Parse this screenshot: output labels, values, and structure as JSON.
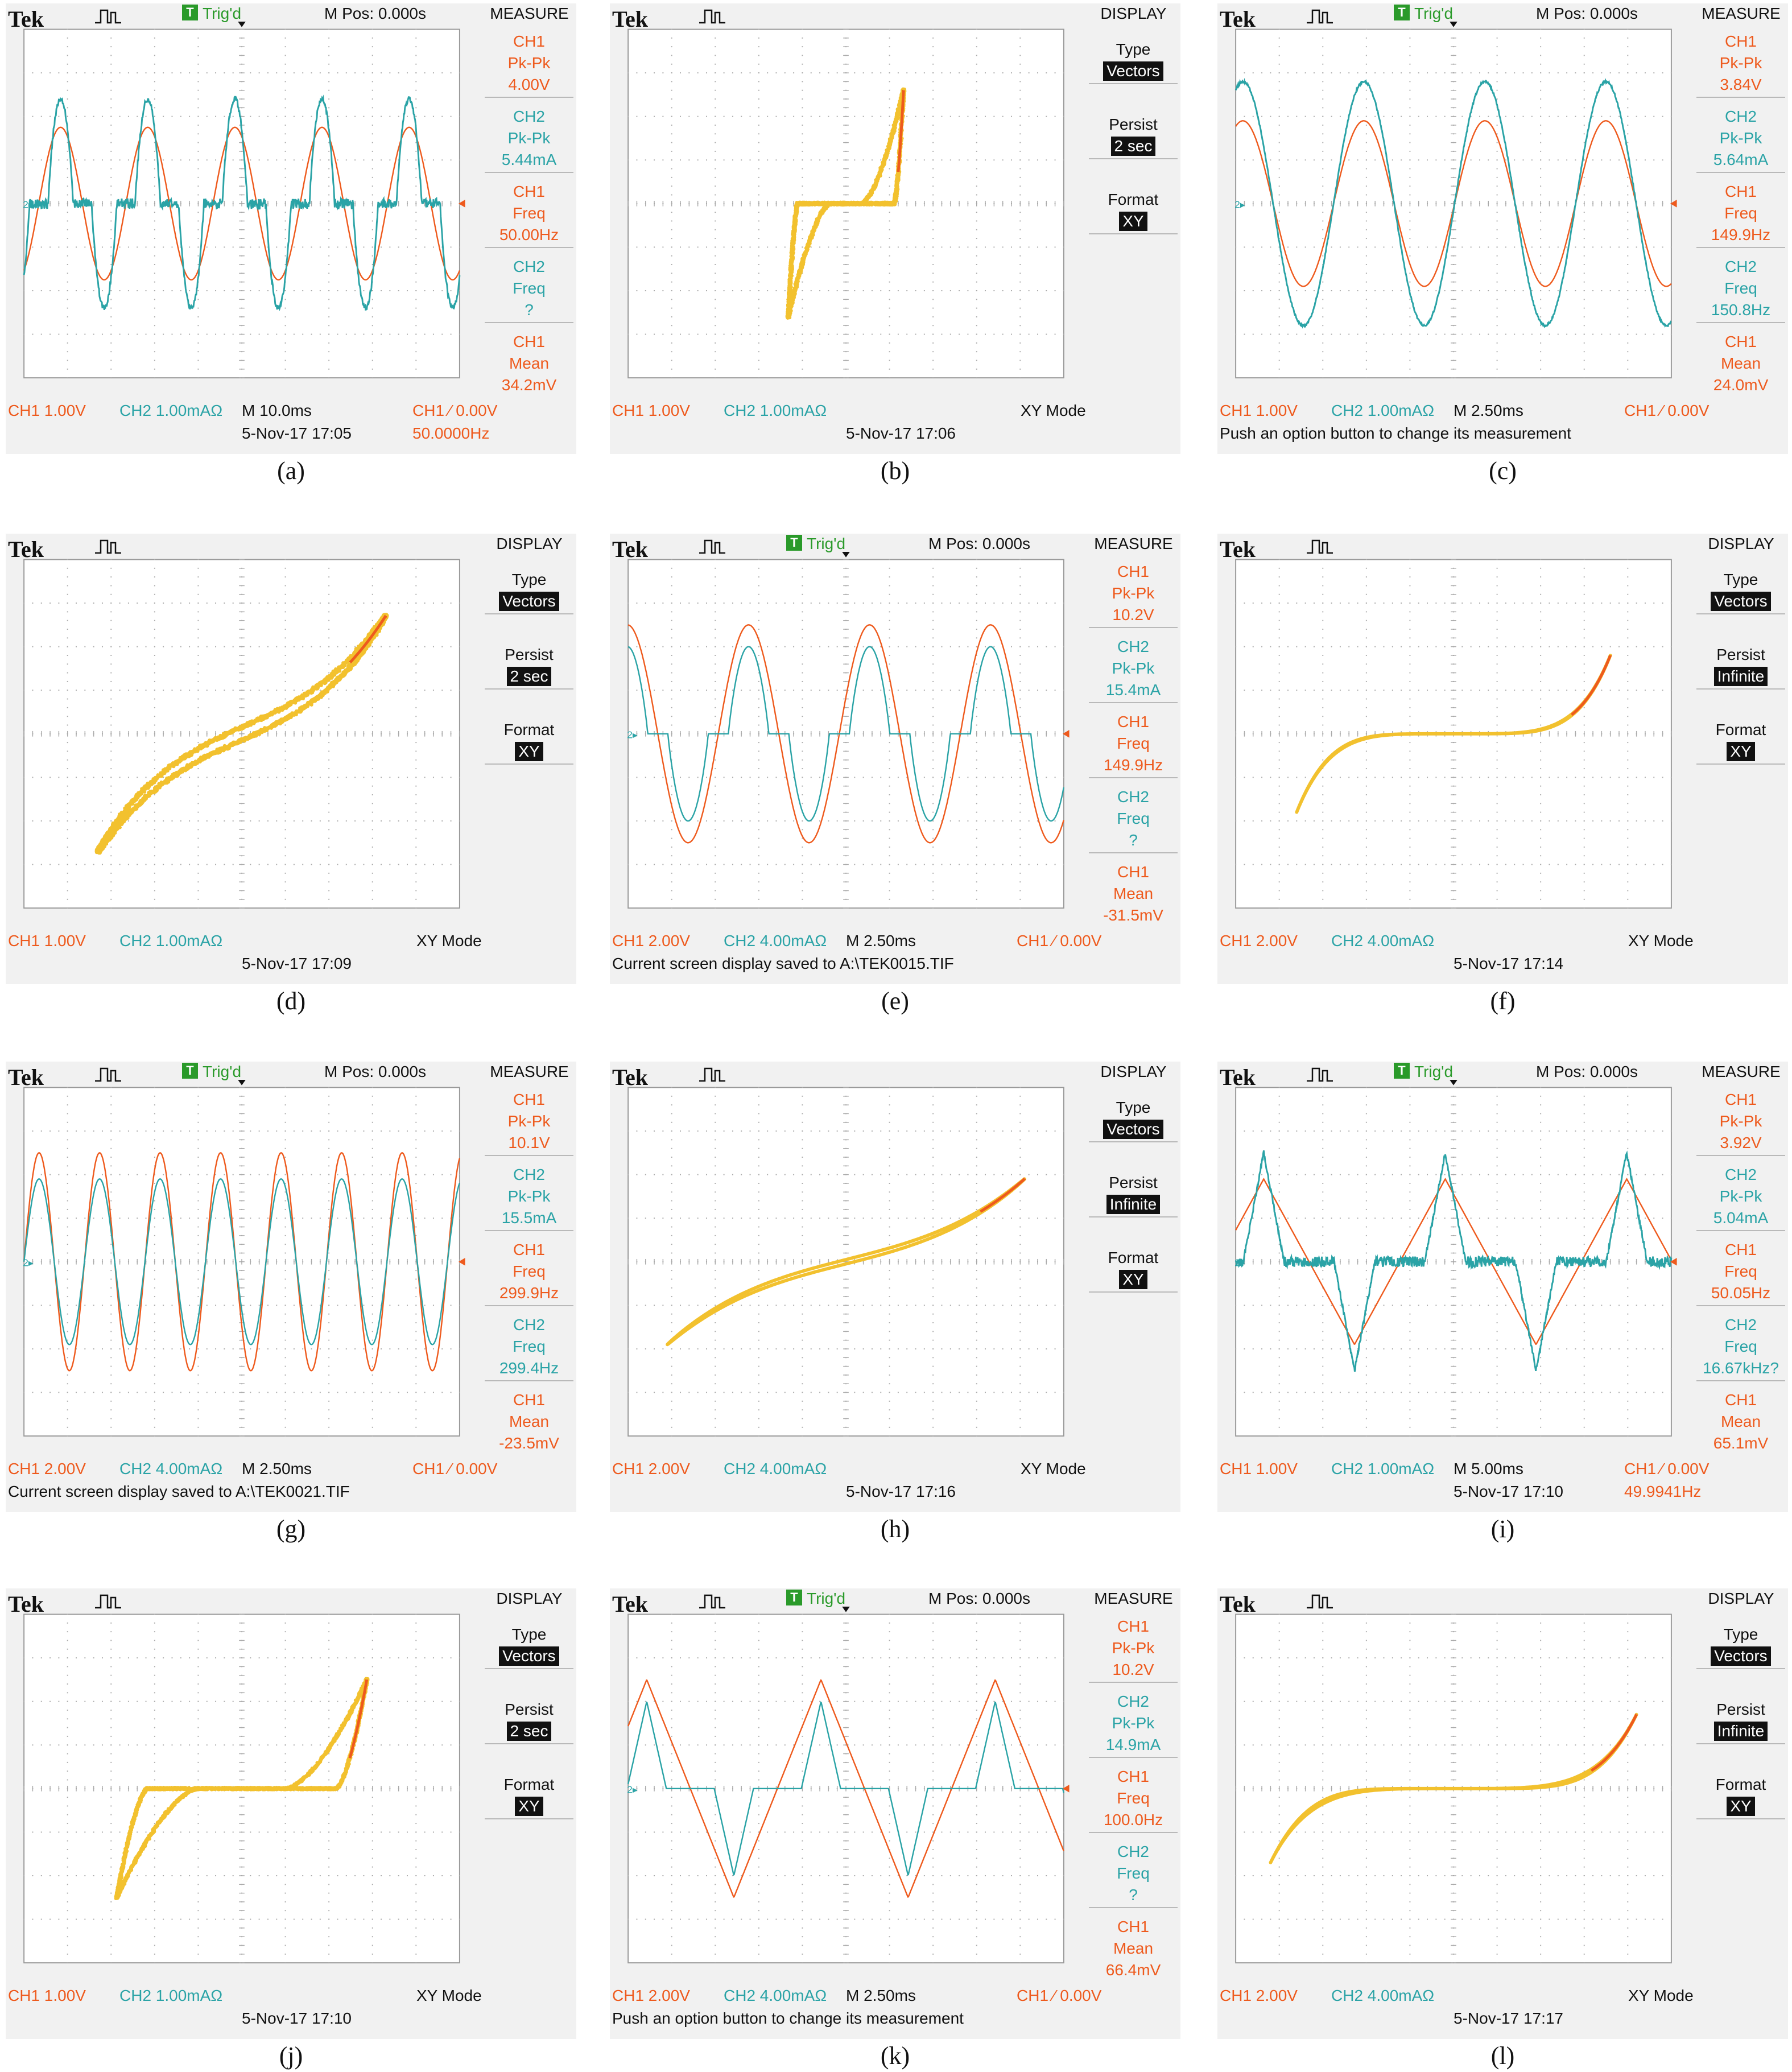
{
  "brand": "Tek",
  "colors": {
    "ch1": "#ee5a1d",
    "ch2": "#2aa3a6",
    "xy": "#f2c12e",
    "trigger": "#2a9a2a",
    "screen": "#f1f1f1"
  },
  "scopes": [
    {
      "caption": "(a)",
      "mode": "yt",
      "trig": "Trig'd",
      "mpos": "M Pos: 0.000s",
      "menu_title": "MEASURE",
      "measures": [
        {
          "ch": "CH1",
          "label": "Pk-Pk",
          "value": "4.00V",
          "color": "ch1"
        },
        {
          "ch": "CH2",
          "label": "Pk-Pk",
          "value": "5.44mA",
          "color": "ch2"
        },
        {
          "ch": "CH1",
          "label": "Freq",
          "value": "50.00Hz",
          "color": "ch1"
        },
        {
          "ch": "CH2",
          "label": "Freq",
          "value": "?",
          "color": "ch2"
        },
        {
          "ch": "CH1",
          "label": "Mean",
          "value": "34.2mV",
          "color": "ch1"
        }
      ],
      "ch1_scale": "CH1  1.00V",
      "ch2_scale": "CH2  1.00mAΩ",
      "timebase": "M 10.0ms",
      "trig_level": "CH1 ⁄ 0.00V",
      "line2_left": "5-Nov-17 17:05",
      "line2_right": "50.0000Hz"
    },
    {
      "caption": "(b)",
      "mode": "xy",
      "menu_title": "DISPLAY",
      "display": {
        "type_label": "Type",
        "type_value": "Vectors",
        "persist_label": "Persist",
        "persist_value": "2 sec",
        "format_label": "Format",
        "format_value": "XY"
      },
      "ch1_scale": "CH1  1.00V",
      "ch2_scale": "CH2  1.00mAΩ",
      "xy_mode": "XY Mode",
      "line2_left": "5-Nov-17 17:06"
    },
    {
      "caption": "(c)",
      "mode": "yt",
      "trig": "Trig'd",
      "mpos": "M Pos: 0.000s",
      "menu_title": "MEASURE",
      "measures": [
        {
          "ch": "CH1",
          "label": "Pk-Pk",
          "value": "3.84V",
          "color": "ch1"
        },
        {
          "ch": "CH2",
          "label": "Pk-Pk",
          "value": "5.64mA",
          "color": "ch2"
        },
        {
          "ch": "CH1",
          "label": "Freq",
          "value": "149.9Hz",
          "color": "ch1"
        },
        {
          "ch": "CH2",
          "label": "Freq",
          "value": "150.8Hz",
          "color": "ch2"
        },
        {
          "ch": "CH1",
          "label": "Mean",
          "value": "24.0mV",
          "color": "ch1"
        }
      ],
      "ch1_scale": "CH1  1.00V",
      "ch2_scale": "CH2  1.00mAΩ",
      "timebase": "M 2.50ms",
      "trig_level": "CH1 ⁄ 0.00V",
      "line2_left": "Push an option button to change its measurement"
    },
    {
      "caption": "(d)",
      "mode": "xy",
      "menu_title": "DISPLAY",
      "display": {
        "type_label": "Type",
        "type_value": "Vectors",
        "persist_label": "Persist",
        "persist_value": "2 sec",
        "format_label": "Format",
        "format_value": "XY"
      },
      "ch1_scale": "CH1  1.00V",
      "ch2_scale": "CH2  1.00mAΩ",
      "xy_mode": "XY Mode",
      "line2_left": "5-Nov-17 17:09"
    },
    {
      "caption": "(e)",
      "mode": "yt",
      "trig": "Trig'd",
      "mpos": "M Pos: 0.000s",
      "menu_title": "MEASURE",
      "measures": [
        {
          "ch": "CH1",
          "label": "Pk-Pk",
          "value": "10.2V",
          "color": "ch1"
        },
        {
          "ch": "CH2",
          "label": "Pk-Pk",
          "value": "15.4mA",
          "color": "ch2"
        },
        {
          "ch": "CH1",
          "label": "Freq",
          "value": "149.9Hz",
          "color": "ch1"
        },
        {
          "ch": "CH2",
          "label": "Freq",
          "value": "?",
          "color": "ch2"
        },
        {
          "ch": "CH1",
          "label": "Mean",
          "value": "-31.5mV",
          "color": "ch1"
        }
      ],
      "ch1_scale": "CH1  2.00V",
      "ch2_scale": "CH2  4.00mAΩ",
      "timebase": "M 2.50ms",
      "trig_level": "CH1 ⁄ 0.00V",
      "line2_left": "Current screen display saved to A:\\TEK0015.TIF"
    },
    {
      "caption": "(f)",
      "mode": "xy",
      "menu_title": "DISPLAY",
      "display": {
        "type_label": "Type",
        "type_value": "Vectors",
        "persist_label": "Persist",
        "persist_value": "Infinite",
        "format_label": "Format",
        "format_value": "XY"
      },
      "ch1_scale": "CH1  2.00V",
      "ch2_scale": "CH2  4.00mAΩ",
      "xy_mode": "XY Mode",
      "line2_left": "5-Nov-17 17:14"
    },
    {
      "caption": "(g)",
      "mode": "yt",
      "trig": "Trig'd",
      "mpos": "M Pos: 0.000s",
      "menu_title": "MEASURE",
      "measures": [
        {
          "ch": "CH1",
          "label": "Pk-Pk",
          "value": "10.1V",
          "color": "ch1"
        },
        {
          "ch": "CH2",
          "label": "Pk-Pk",
          "value": "15.5mA",
          "color": "ch2"
        },
        {
          "ch": "CH1",
          "label": "Freq",
          "value": "299.9Hz",
          "color": "ch1"
        },
        {
          "ch": "CH2",
          "label": "Freq",
          "value": "299.4Hz",
          "color": "ch2"
        },
        {
          "ch": "CH1",
          "label": "Mean",
          "value": "-23.5mV",
          "color": "ch1"
        }
      ],
      "ch1_scale": "CH1  2.00V",
      "ch2_scale": "CH2  4.00mAΩ",
      "timebase": "M 2.50ms",
      "trig_level": "CH1 ⁄ 0.00V",
      "line2_left": "Current screen display saved to A:\\TEK0021.TIF"
    },
    {
      "caption": "(h)",
      "mode": "xy",
      "menu_title": "DISPLAY",
      "display": {
        "type_label": "Type",
        "type_value": "Vectors",
        "persist_label": "Persist",
        "persist_value": "Infinite",
        "format_label": "Format",
        "format_value": "XY"
      },
      "ch1_scale": "CH1  2.00V",
      "ch2_scale": "CH2  4.00mAΩ",
      "xy_mode": "XY Mode",
      "line2_left": "5-Nov-17 17:16"
    },
    {
      "caption": "(i)",
      "mode": "yt",
      "trig": "Trig'd",
      "mpos": "M Pos: 0.000s",
      "menu_title": "MEASURE",
      "measures": [
        {
          "ch": "CH1",
          "label": "Pk-Pk",
          "value": "3.92V",
          "color": "ch1"
        },
        {
          "ch": "CH2",
          "label": "Pk-Pk",
          "value": "5.04mA",
          "color": "ch2"
        },
        {
          "ch": "CH1",
          "label": "Freq",
          "value": "50.05Hz",
          "color": "ch1"
        },
        {
          "ch": "CH2",
          "label": "Freq",
          "value": "16.67kHz?",
          "color": "ch2"
        },
        {
          "ch": "CH1",
          "label": "Mean",
          "value": "65.1mV",
          "color": "ch1"
        }
      ],
      "ch1_scale": "CH1  1.00V",
      "ch2_scale": "CH2  1.00mAΩ",
      "timebase": "M 5.00ms",
      "trig_level": "CH1 ⁄ 0.00V",
      "line2_left": "5-Nov-17 17:10",
      "line2_right": "49.9941Hz"
    },
    {
      "caption": "(j)",
      "mode": "xy",
      "menu_title": "DISPLAY",
      "display": {
        "type_label": "Type",
        "type_value": "Vectors",
        "persist_label": "Persist",
        "persist_value": "2 sec",
        "format_label": "Format",
        "format_value": "XY"
      },
      "ch1_scale": "CH1  1.00V",
      "ch2_scale": "CH2  1.00mAΩ",
      "xy_mode": "XY Mode",
      "line2_left": "5-Nov-17 17:10"
    },
    {
      "caption": "(k)",
      "mode": "yt",
      "trig": "Trig'd",
      "mpos": "M Pos: 0.000s",
      "menu_title": "MEASURE",
      "measures": [
        {
          "ch": "CH1",
          "label": "Pk-Pk",
          "value": "10.2V",
          "color": "ch1"
        },
        {
          "ch": "CH2",
          "label": "Pk-Pk",
          "value": "14.9mA",
          "color": "ch2"
        },
        {
          "ch": "CH1",
          "label": "Freq",
          "value": "100.0Hz",
          "color": "ch1"
        },
        {
          "ch": "CH2",
          "label": "Freq",
          "value": "?",
          "color": "ch2"
        },
        {
          "ch": "CH1",
          "label": "Mean",
          "value": "66.4mV",
          "color": "ch1"
        }
      ],
      "ch1_scale": "CH1  2.00V",
      "ch2_scale": "CH2  4.00mAΩ",
      "timebase": "M 2.50ms",
      "trig_level": "CH1 ⁄ 0.00V",
      "line2_left": "Push an option button to change its measurement"
    },
    {
      "caption": "(l)",
      "mode": "xy",
      "menu_title": "DISPLAY",
      "display": {
        "type_label": "Type",
        "type_value": "Vectors",
        "persist_label": "Persist",
        "persist_value": "Infinite",
        "format_label": "Format",
        "format_value": "XY"
      },
      "ch1_scale": "CH1  2.00V",
      "ch2_scale": "CH2  4.00mAΩ",
      "xy_mode": "XY Mode",
      "line2_left": "5-Nov-17 17:17"
    }
  ]
}
